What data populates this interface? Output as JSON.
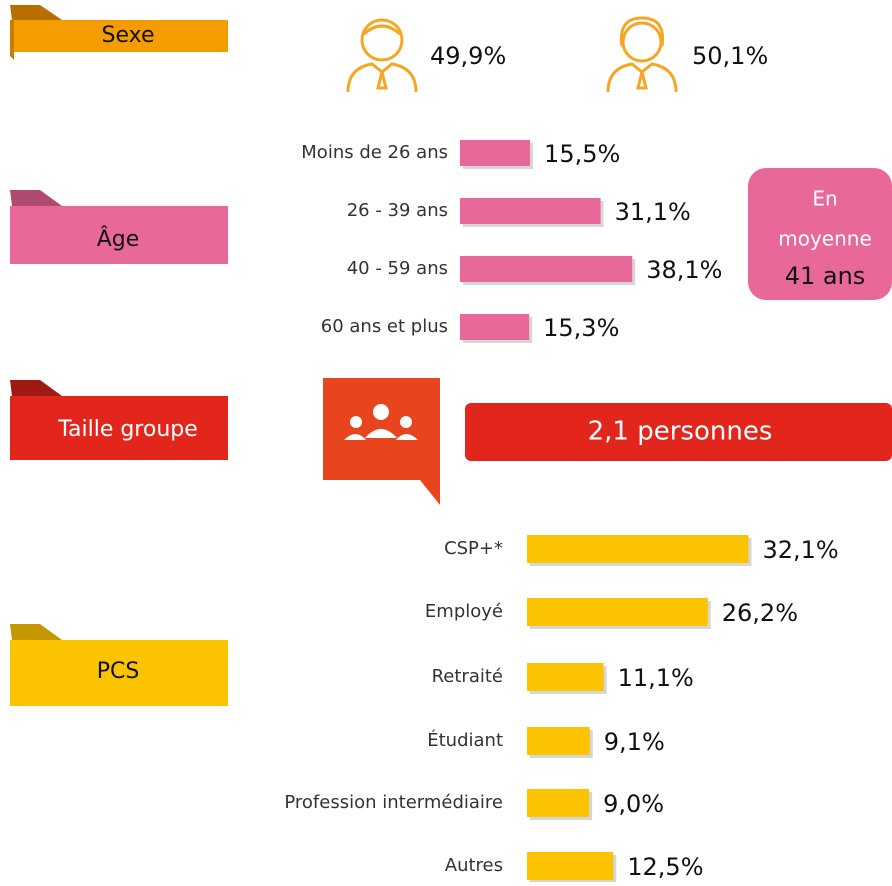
{
  "sexe": {
    "label": "Sexe",
    "men": "49,9%",
    "women": "50,1%"
  },
  "age": {
    "label": "Âge",
    "categories": [
      "Moins de 26 ans",
      "26 - 39 ans",
      "40 - 59 ans",
      "60 ans et plus"
    ],
    "values": [
      15.5,
      31.1,
      38.1,
      15.3
    ],
    "value_labels": [
      "15,5%",
      "31,1%",
      "38,1%",
      "15,3%"
    ],
    "color": "#e8689a",
    "average": {
      "line1": "En",
      "line2": "moyenne",
      "value": "41 ans"
    }
  },
  "groupe": {
    "label": "Taille groupe",
    "value": "2,1 personnes"
  },
  "pcs": {
    "label": "PCS",
    "categories": [
      "CSP+*",
      "Employé",
      "Retraité",
      "Étudiant",
      "Profession intermédiaire",
      "Autres"
    ],
    "values": [
      32.1,
      26.2,
      11.1,
      9.1,
      9.0,
      12.5
    ],
    "value_labels": [
      "32,1%",
      "26,2%",
      "11,1%",
      "9,1%",
      "9,0%",
      "12,5%"
    ],
    "color": "#fcc400"
  }
}
